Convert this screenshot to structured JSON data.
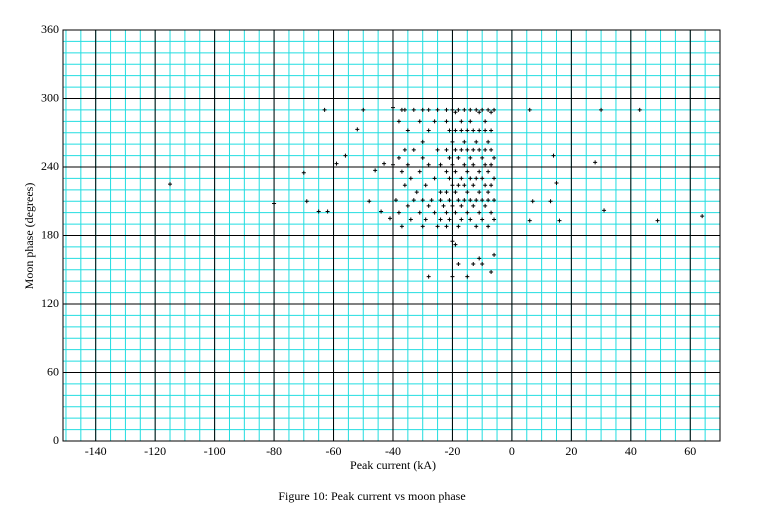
{
  "chart_data": {
    "type": "scatter",
    "title": "Figure 10: Peak current vs moon phase",
    "x_label": "Peak current (kA)",
    "y_label": "Moon phase (degrees)",
    "xlim": [
      -151,
      70
    ],
    "ylim": [
      0,
      360
    ],
    "xticks": [
      -140,
      -120,
      -100,
      -80,
      -60,
      -40,
      -20,
      0,
      20,
      40,
      60
    ],
    "yticks": [
      0,
      60,
      120,
      180,
      240,
      300,
      360
    ],
    "grid": true,
    "color": "#000000",
    "grid_color": "#22dde0",
    "x": [
      -115,
      -80,
      -70,
      -69,
      -65,
      -62,
      -63,
      -59,
      -56,
      -52,
      -50,
      -48,
      -46,
      -44,
      -43,
      -41,
      -40,
      -37,
      -36,
      6,
      6,
      7,
      13,
      14,
      15,
      16,
      28,
      30,
      31,
      43,
      49,
      64,
      -28,
      -20,
      -19,
      -20,
      -18,
      -15,
      -13,
      -11,
      -10,
      -7,
      -6,
      -33,
      -30,
      -28,
      -25,
      -22,
      -20,
      -18,
      -16,
      -14,
      -12,
      -10,
      -8,
      -6,
      -19,
      -11,
      -7,
      -38,
      -31,
      -26,
      -22,
      -17,
      -14,
      -9,
      -35,
      -28,
      -21,
      -19,
      -17,
      -15,
      -13,
      -11,
      -9,
      -7,
      -30,
      -20,
      -16,
      -12,
      -8,
      -36,
      -33,
      -25,
      -22,
      -19,
      -17,
      -15,
      -13,
      -11,
      -9,
      -7,
      -38,
      -30,
      -21,
      -18,
      -14,
      -10,
      -6,
      -40,
      -35,
      -28,
      -24,
      -20,
      -16,
      -13,
      -9,
      -7,
      -37,
      -31,
      -22,
      -19,
      -15,
      -11,
      -8,
      -34,
      -26,
      -21,
      -17,
      -14,
      -12,
      -10,
      -6,
      -36,
      -29,
      -20,
      -18,
      -16,
      -13,
      -9,
      -7,
      -32,
      -24,
      -22,
      -19,
      -15,
      -11,
      -8,
      -39,
      -33,
      -30,
      -27,
      -24,
      -21,
      -18,
      -16,
      -14,
      -12,
      -10,
      -8,
      -6,
      -35,
      -28,
      -23,
      -20,
      -17,
      -13,
      -9,
      -38,
      -31,
      -26,
      -22,
      -19,
      -15,
      -11,
      -7,
      -34,
      -29,
      -24,
      -21,
      -17,
      -14,
      -10,
      -6,
      -37,
      -30,
      -25,
      -22,
      -18,
      -12,
      -8
    ],
    "y": [
      225,
      208,
      235,
      210,
      201,
      201,
      290,
      243,
      250,
      273,
      290,
      210,
      237,
      201,
      243,
      195,
      292,
      290,
      290,
      290,
      193,
      210,
      210,
      250,
      226,
      193,
      244,
      290,
      202,
      290,
      193,
      197,
      144,
      175,
      172,
      144,
      155,
      144,
      155,
      160,
      155,
      148,
      163,
      290,
      290,
      290,
      290,
      290,
      290,
      290,
      290,
      290,
      290,
      290,
      290,
      290,
      288,
      288,
      288,
      280,
      280,
      280,
      280,
      280,
      280,
      280,
      272,
      272,
      272,
      272,
      272,
      272,
      272,
      272,
      272,
      272,
      262,
      262,
      262,
      262,
      262,
      255,
      255,
      255,
      255,
      255,
      255,
      255,
      255,
      255,
      255,
      255,
      248,
      248,
      248,
      248,
      248,
      248,
      248,
      242,
      242,
      242,
      242,
      242,
      242,
      242,
      242,
      242,
      236,
      236,
      236,
      236,
      236,
      236,
      236,
      230,
      230,
      230,
      230,
      230,
      230,
      230,
      230,
      224,
      224,
      224,
      224,
      224,
      224,
      224,
      224,
      218,
      218,
      218,
      218,
      218,
      218,
      218,
      211,
      211,
      211,
      211,
      211,
      211,
      211,
      211,
      211,
      211,
      211,
      211,
      211,
      206,
      206,
      206,
      206,
      206,
      206,
      206,
      200,
      200,
      200,
      200,
      200,
      200,
      200,
      200,
      194,
      194,
      194,
      194,
      194,
      194,
      194,
      194,
      188,
      188,
      188,
      188,
      188,
      188,
      188
    ]
  }
}
